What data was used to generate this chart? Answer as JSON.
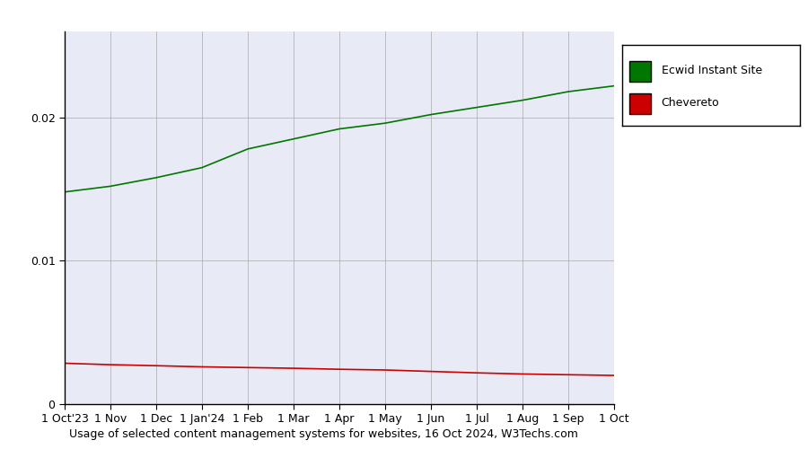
{
  "title": "Usage of selected content management systems for websites, 16 Oct 2024, W3Techs.com",
  "plot_bg_color": "#e8eaf6",
  "outer_bg_color": "#ffffff",
  "x_labels": [
    "1 Oct'23",
    "1 Nov",
    "1 Dec",
    "1 Jan'24",
    "1 Feb",
    "1 Mar",
    "1 Apr",
    "1 May",
    "1 Jun",
    "1 Jul",
    "1 Aug",
    "1 Sep",
    "1 Oct"
  ],
  "x_positions": [
    0,
    1,
    2,
    3,
    4,
    5,
    6,
    7,
    8,
    9,
    10,
    11,
    12
  ],
  "ecwid_values": [
    0.0148,
    0.0152,
    0.0158,
    0.0165,
    0.0178,
    0.0185,
    0.0192,
    0.0196,
    0.0202,
    0.0207,
    0.0212,
    0.0218,
    0.0222
  ],
  "chevereto_values": [
    0.00285,
    0.00275,
    0.00268,
    0.0026,
    0.00255,
    0.0025,
    0.00243,
    0.00238,
    0.00228,
    0.00218,
    0.0021,
    0.00205,
    0.002
  ],
  "ecwid_color": "#007700",
  "chevereto_color": "#cc0000",
  "ecwid_label": "Ecwid Instant Site",
  "chevereto_label": "Chevereto",
  "ylim": [
    0,
    0.026
  ],
  "yticks": [
    0,
    0.01,
    0.02
  ],
  "grid_color": "#aaaaaa",
  "legend_box_color": "#ffffff",
  "legend_border_color": "#000000",
  "title_fontsize": 9,
  "tick_fontsize": 9
}
